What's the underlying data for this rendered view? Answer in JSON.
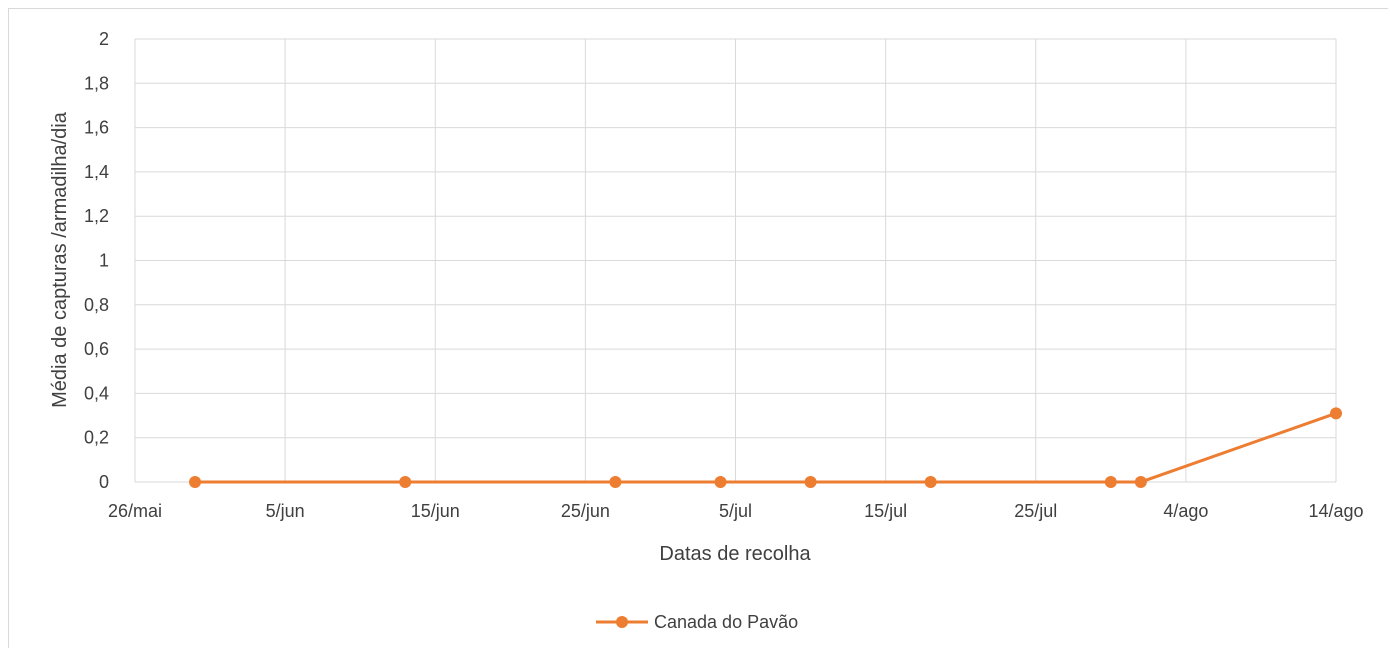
{
  "chart_data": {
    "type": "line",
    "title": "",
    "xlabel": "Datas de recolha",
    "ylabel": "Média de capturas /armadilha/dia",
    "x_axis": {
      "type": "date",
      "min": "2019-05-26",
      "max": "2019-08-14",
      "ticks": [
        {
          "date": "2019-05-26",
          "label": "26/mai"
        },
        {
          "date": "2019-06-05",
          "label": "5/jun"
        },
        {
          "date": "2019-06-15",
          "label": "15/jun"
        },
        {
          "date": "2019-06-25",
          "label": "25/jun"
        },
        {
          "date": "2019-07-05",
          "label": "5/jul"
        },
        {
          "date": "2019-07-15",
          "label": "15/jul"
        },
        {
          "date": "2019-07-25",
          "label": "25/jul"
        },
        {
          "date": "2019-08-04",
          "label": "4/ago"
        },
        {
          "date": "2019-08-14",
          "label": "14/ago"
        }
      ]
    },
    "y_axis": {
      "min": 0,
      "max": 2,
      "ticks": [
        {
          "value": 0,
          "label": "0"
        },
        {
          "value": 0.2,
          "label": "0,2"
        },
        {
          "value": 0.4,
          "label": "0,4"
        },
        {
          "value": 0.6,
          "label": "0,6"
        },
        {
          "value": 0.8,
          "label": "0,8"
        },
        {
          "value": 1,
          "label": "1"
        },
        {
          "value": 1.2,
          "label": "1,2"
        },
        {
          "value": 1.4,
          "label": "1,4"
        },
        {
          "value": 1.6,
          "label": "1,6"
        },
        {
          "value": 1.8,
          "label": "1,8"
        },
        {
          "value": 2,
          "label": "2"
        }
      ]
    },
    "grid": true,
    "legend_position": "bottom",
    "series": [
      {
        "name": "Canada do Pavão",
        "color": "#ED7D31",
        "points": [
          {
            "x": "2019-05-30",
            "y": 0
          },
          {
            "x": "2019-06-13",
            "y": 0
          },
          {
            "x": "2019-06-27",
            "y": 0
          },
          {
            "x": "2019-07-04",
            "y": 0
          },
          {
            "x": "2019-07-10",
            "y": 0
          },
          {
            "x": "2019-07-18",
            "y": 0
          },
          {
            "x": "2019-07-30",
            "y": 0
          },
          {
            "x": "2019-08-01",
            "y": 0
          },
          {
            "x": "2019-08-14",
            "y": 0.31
          }
        ]
      }
    ]
  }
}
